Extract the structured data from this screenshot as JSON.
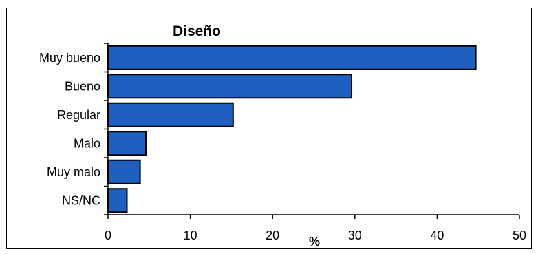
{
  "chart_data": {
    "type": "bar",
    "orientation": "horizontal",
    "title": "Diseño",
    "xlabel": "%",
    "ylabel": "",
    "categories": [
      "Muy bueno",
      "Bueno",
      "Regular",
      "Malo",
      "Muy malo",
      "NS/NC"
    ],
    "values": [
      44.7,
      29.6,
      15.2,
      4.6,
      3.9,
      2.3
    ],
    "xlim": [
      0,
      50
    ],
    "xticks": [
      "0",
      "10",
      "20",
      "30",
      "40",
      "50"
    ],
    "grid": false,
    "legend": "none",
    "bar_color": "#1F5FBF",
    "bar_edge_color": "#000000"
  }
}
